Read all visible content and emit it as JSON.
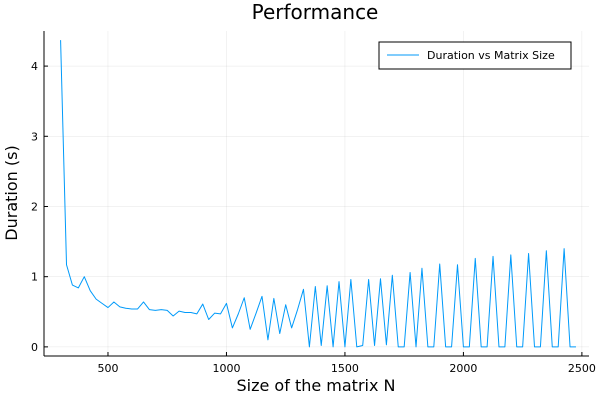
{
  "chart_data": {
    "type": "line",
    "title": "Performance",
    "xlabel": "Size of the matrix N",
    "ylabel": "Duration (s)",
    "xlim": [
      230,
      2530
    ],
    "ylim": [
      -0.13,
      4.5
    ],
    "xticks": [
      500,
      1000,
      1500,
      2000,
      2500
    ],
    "yticks": [
      0,
      1,
      2,
      3,
      4
    ],
    "grid": true,
    "legend_position": "top-right",
    "series": [
      {
        "name": "Duration vs Matrix Size",
        "color": "#009AFA",
        "x": [
          300,
          325,
          350,
          375,
          400,
          425,
          450,
          475,
          500,
          525,
          550,
          575,
          600,
          625,
          650,
          675,
          700,
          725,
          750,
          775,
          800,
          825,
          850,
          875,
          900,
          925,
          950,
          975,
          1000,
          1025,
          1050,
          1075,
          1100,
          1125,
          1150,
          1175,
          1200,
          1225,
          1250,
          1275,
          1300,
          1325,
          1350,
          1375,
          1400,
          1425,
          1450,
          1475,
          1500,
          1525,
          1550,
          1575,
          1600,
          1625,
          1650,
          1675,
          1700,
          1725,
          1750,
          1775,
          1800,
          1825,
          1850,
          1875,
          1900,
          1925,
          1950,
          1975,
          2000,
          2025,
          2050,
          2075,
          2100,
          2125,
          2150,
          2175,
          2200,
          2225,
          2250,
          2275,
          2300,
          2325,
          2350,
          2375,
          2400,
          2425,
          2450,
          2475
        ],
        "y": [
          4.37,
          1.17,
          0.88,
          0.84,
          1.0,
          0.8,
          0.68,
          0.62,
          0.56,
          0.64,
          0.57,
          0.55,
          0.54,
          0.54,
          0.64,
          0.53,
          0.52,
          0.53,
          0.52,
          0.44,
          0.51,
          0.49,
          0.49,
          0.47,
          0.61,
          0.39,
          0.48,
          0.47,
          0.62,
          0.27,
          0.47,
          0.7,
          0.25,
          0.48,
          0.72,
          0.1,
          0.69,
          0.19,
          0.6,
          0.27,
          0.53,
          0.82,
          0.0,
          0.86,
          0.02,
          0.87,
          0.0,
          0.93,
          0.0,
          0.96,
          0.0,
          0.02,
          0.96,
          0.02,
          0.97,
          0.03,
          1.02,
          0.0,
          0.0,
          1.06,
          0.0,
          1.12,
          0.0,
          0.0,
          1.18,
          0.0,
          0.0,
          1.17,
          0.0,
          0.0,
          1.26,
          0.0,
          0.0,
          1.29,
          0.0,
          0.0,
          1.31,
          0.0,
          0.0,
          1.33,
          0.0,
          0.0,
          1.37,
          0.0,
          0.0,
          1.4,
          0.0,
          0.0
        ]
      }
    ]
  }
}
